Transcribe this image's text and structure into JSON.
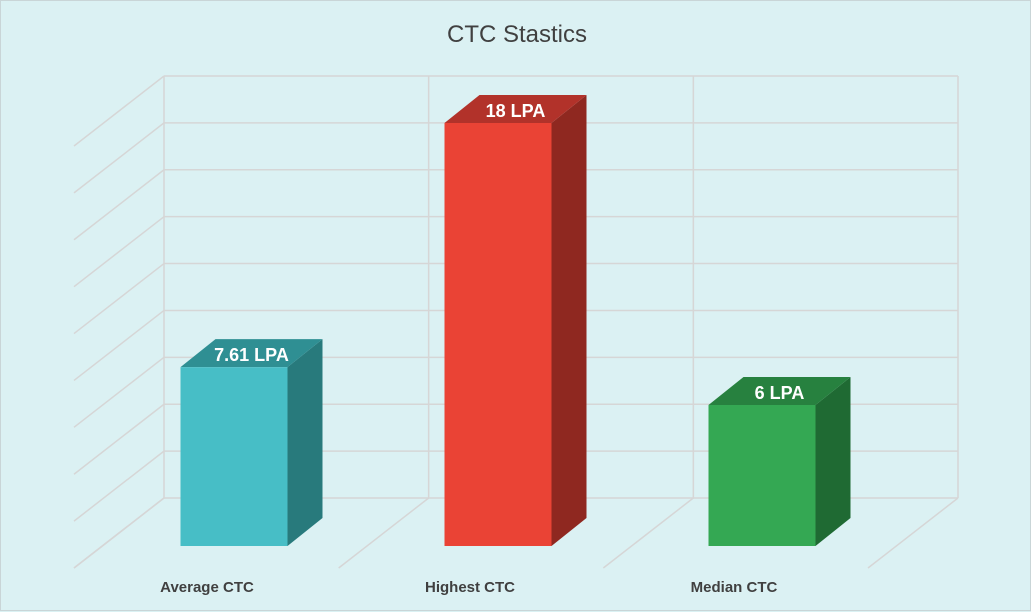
{
  "chart_data": {
    "type": "bar",
    "title": "CTC Stastics",
    "categories": [
      "Average CTC",
      "Highest CTC",
      "Median CTC"
    ],
    "values": [
      7.61,
      18,
      6
    ],
    "data_labels": [
      "7.61 LPA",
      "18 LPA",
      "6 LPA"
    ],
    "colors": [
      {
        "front": "#47bec6",
        "side": "#287a7c",
        "top": "#2f8f93"
      },
      {
        "front": "#ea4335",
        "side": "#8f2820",
        "top": "#b2322a"
      },
      {
        "front": "#34a853",
        "side": "#1f6a33",
        "top": "#27813f"
      }
    ],
    "ylim": [
      0,
      20
    ],
    "grid": true,
    "three_d": true
  }
}
